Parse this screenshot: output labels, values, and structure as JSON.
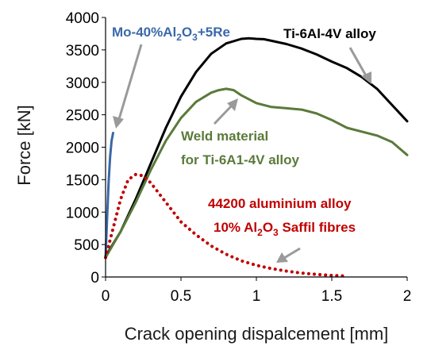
{
  "chart_data": {
    "type": "line",
    "xlabel": "Crack opening dispalcement [mm]",
    "ylabel": "Force [kN]",
    "xlim": [
      0,
      2
    ],
    "ylim": [
      0,
      4000
    ],
    "x_ticks": [
      "0",
      "0.5",
      "1",
      "1.5",
      "2"
    ],
    "y_ticks": [
      "0",
      "500",
      "1000",
      "1500",
      "2000",
      "2500",
      "3000",
      "3500",
      "4000"
    ],
    "grid": false,
    "legend": "none",
    "series": [
      {
        "name": "Mo-40%Al2O3+5Re",
        "color": "#3a68a8",
        "style": "solid",
        "x": [
          0.0,
          0.01,
          0.02,
          0.03,
          0.04,
          0.05
        ],
        "y": [
          300,
          900,
          1450,
          1850,
          2100,
          2220
        ]
      },
      {
        "name": "Ti-6Al-4V alloy",
        "color": "#000000",
        "style": "solid",
        "x": [
          0.0,
          0.1,
          0.2,
          0.3,
          0.4,
          0.5,
          0.6,
          0.7,
          0.8,
          0.9,
          0.95,
          1.0,
          1.05,
          1.1,
          1.2,
          1.3,
          1.4,
          1.5,
          1.6,
          1.7,
          1.8,
          1.9,
          2.0
        ],
        "y": [
          320,
          700,
          1200,
          1750,
          2300,
          2780,
          3160,
          3440,
          3600,
          3670,
          3680,
          3670,
          3665,
          3640,
          3590,
          3520,
          3430,
          3320,
          3220,
          3080,
          2900,
          2650,
          2400
        ]
      },
      {
        "name": "Weld material for Ti-6A1-4V alloy",
        "color": "#5a7a3a",
        "style": "solid",
        "x": [
          0.0,
          0.1,
          0.2,
          0.3,
          0.4,
          0.5,
          0.6,
          0.7,
          0.75,
          0.8,
          0.85,
          0.9,
          1.0,
          1.1,
          1.2,
          1.3,
          1.4,
          1.5,
          1.6,
          1.7,
          1.8,
          1.9,
          2.0
        ],
        "y": [
          300,
          700,
          1150,
          1650,
          2100,
          2450,
          2700,
          2840,
          2880,
          2900,
          2880,
          2800,
          2680,
          2620,
          2600,
          2580,
          2520,
          2420,
          2300,
          2240,
          2180,
          2080,
          1880
        ]
      },
      {
        "name": "44200 aluminium alloy 10% Al2O3 Saffil fibres",
        "color": "#c00000",
        "style": "dotted",
        "x": [
          0.0,
          0.05,
          0.1,
          0.15,
          0.2,
          0.25,
          0.3,
          0.35,
          0.4,
          0.45,
          0.5,
          0.6,
          0.7,
          0.8,
          0.9,
          1.0,
          1.1,
          1.2,
          1.3,
          1.4,
          1.5,
          1.6
        ],
        "y": [
          300,
          750,
          1200,
          1500,
          1580,
          1560,
          1450,
          1300,
          1150,
          1000,
          850,
          650,
          480,
          350,
          250,
          180,
          130,
          90,
          60,
          40,
          25,
          15
        ]
      }
    ],
    "annotations": [
      {
        "lines": [
          "Mo-40%Al2O3+5Re"
        ],
        "color": "#3a68a8"
      },
      {
        "lines": [
          "Ti-6Al-4V alloy"
        ],
        "color": "#000000"
      },
      {
        "lines": [
          "Weld material",
          "for Ti-6A1-4V alloy"
        ],
        "color": "#5a7a3a"
      },
      {
        "lines": [
          "44200 aluminium alloy",
          "10% Al2O3 Saffil fibres"
        ],
        "color": "#c00000"
      }
    ]
  }
}
